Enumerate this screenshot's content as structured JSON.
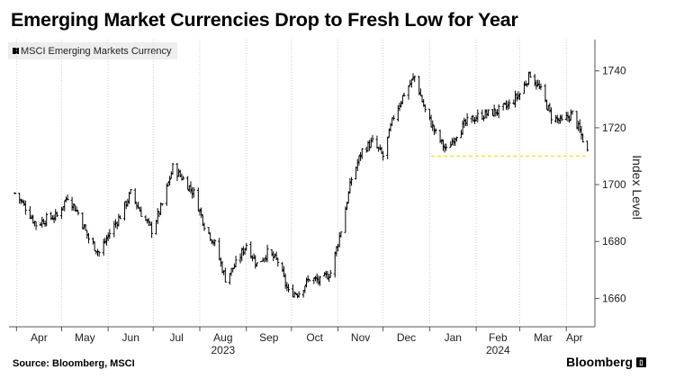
{
  "title": "Emerging Market Currencies Drop to Fresh Low for Year",
  "footer": {
    "source": "Source: Bloomberg, MSCI",
    "brand": "Bloomberg"
  },
  "chart_data": {
    "type": "ohlc",
    "title": "Emerging Market Currencies Drop to Fresh Low for Year",
    "ylabel": "Index Level",
    "xlabel": "",
    "ylim": [
      1650,
      1751
    ],
    "yticks": [
      1660,
      1680,
      1700,
      1720,
      1740
    ],
    "y_axis_side": "right",
    "grid": "vertical dotted",
    "legend": {
      "position": "top-left",
      "entries": [
        "MSCI Emerging Markets Currency"
      ]
    },
    "x_month_ticks": [
      "Apr",
      "May",
      "Jun",
      "Jul",
      "Aug",
      "Sep",
      "Oct",
      "Nov",
      "Dec",
      "Jan",
      "Feb",
      "Mar",
      "Apr"
    ],
    "year_labels": [
      {
        "label": "2023",
        "under_month_index": 4
      },
      {
        "label": "2024",
        "under_month_index": 10
      }
    ],
    "annotation": {
      "type": "horizontal dashed line",
      "value": 1710,
      "color": "#f5e23a",
      "from": "2024-01-02",
      "to": "2024-04-16"
    },
    "series": [
      {
        "name": "MSCI Emerging Markets Currency",
        "color": "#000000",
        "weekly_close": [
          [
            "2023-03-31",
            1697
          ],
          [
            "2023-04-07",
            1692
          ],
          [
            "2023-04-14",
            1686
          ],
          [
            "2023-04-21",
            1688
          ],
          [
            "2023-04-28",
            1689
          ],
          [
            "2023-05-05",
            1696
          ],
          [
            "2023-05-12",
            1690
          ],
          [
            "2023-05-19",
            1681
          ],
          [
            "2023-05-26",
            1676
          ],
          [
            "2023-06-02",
            1683
          ],
          [
            "2023-06-09",
            1689
          ],
          [
            "2023-06-16",
            1697
          ],
          [
            "2023-06-23",
            1690
          ],
          [
            "2023-06-30",
            1684
          ],
          [
            "2023-07-07",
            1693
          ],
          [
            "2023-07-14",
            1706
          ],
          [
            "2023-07-21",
            1702
          ],
          [
            "2023-07-28",
            1697
          ],
          [
            "2023-08-04",
            1686
          ],
          [
            "2023-08-11",
            1679
          ],
          [
            "2023-08-18",
            1667
          ],
          [
            "2023-08-25",
            1672
          ],
          [
            "2023-09-01",
            1679
          ],
          [
            "2023-09-08",
            1672
          ],
          [
            "2023-09-15",
            1676
          ],
          [
            "2023-09-22",
            1673
          ],
          [
            "2023-09-29",
            1662
          ],
          [
            "2023-10-06",
            1662
          ],
          [
            "2023-10-13",
            1667
          ],
          [
            "2023-10-20",
            1666
          ],
          [
            "2023-10-27",
            1669
          ],
          [
            "2023-11-03",
            1684
          ],
          [
            "2023-11-10",
            1702
          ],
          [
            "2023-11-17",
            1712
          ],
          [
            "2023-11-24",
            1715
          ],
          [
            "2023-12-01",
            1710
          ],
          [
            "2023-12-08",
            1724
          ],
          [
            "2023-12-15",
            1732
          ],
          [
            "2023-12-22",
            1738
          ],
          [
            "2023-12-29",
            1726
          ],
          [
            "2024-01-05",
            1718
          ],
          [
            "2024-01-12",
            1712
          ],
          [
            "2024-01-19",
            1718
          ],
          [
            "2024-01-26",
            1722
          ],
          [
            "2024-02-02",
            1724
          ],
          [
            "2024-02-09",
            1725
          ],
          [
            "2024-02-16",
            1726
          ],
          [
            "2024-02-23",
            1728
          ],
          [
            "2024-03-01",
            1732
          ],
          [
            "2024-03-08",
            1739
          ],
          [
            "2024-03-15",
            1733
          ],
          [
            "2024-03-22",
            1724
          ],
          [
            "2024-03-29",
            1722
          ],
          [
            "2024-04-05",
            1725
          ],
          [
            "2024-04-12",
            1716
          ],
          [
            "2024-04-16",
            1710
          ]
        ]
      }
    ]
  }
}
